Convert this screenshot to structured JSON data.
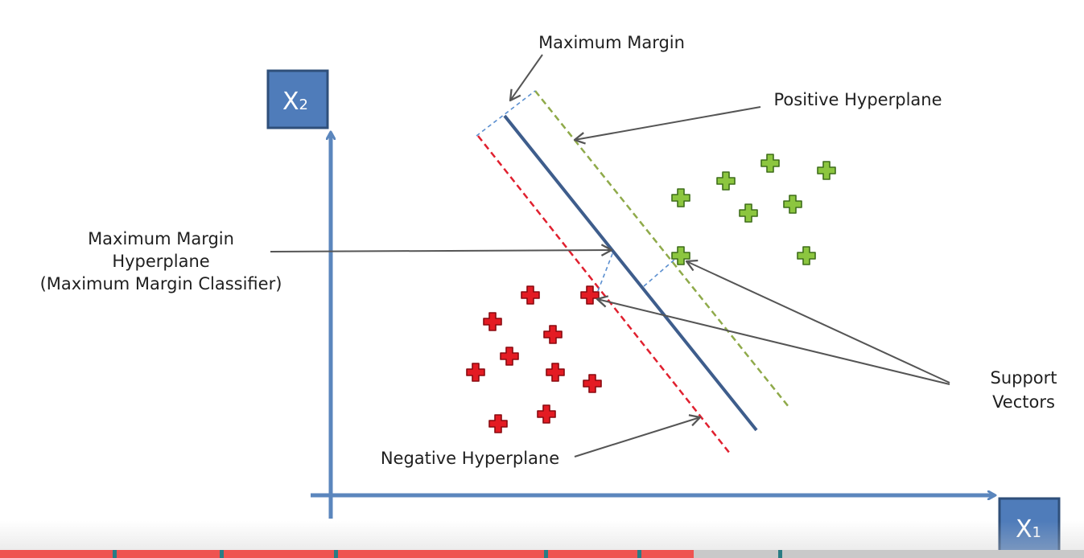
{
  "labels": {
    "maximum_margin": "Maximum Margin",
    "positive_hyperplane": "Positive Hyperplane",
    "mmh_line1": "Maximum Margin",
    "mmh_line2": "Hyperplane",
    "mmh_line3": "(Maximum Margin Classifier)",
    "support_vectors_line1": "Support",
    "support_vectors_line2": "Vectors",
    "negative_hyperplane": "Negative Hyperplane"
  },
  "axes": {
    "y_label": "X",
    "y_sub": "2",
    "x_label": "X",
    "x_sub": "1"
  },
  "colors": {
    "axis": "#5b86bd",
    "axis_box": "#4f7cba",
    "axis_box_border": "#2f4f7a",
    "classifier": "#3e5d8c",
    "positive_line": "#8faa4a",
    "negative_line": "#e0202f",
    "margin_connector": "#5b8fd0",
    "positive_point": "#8cc63f",
    "negative_point": "#e41b23",
    "arrow": "#555555",
    "progress": "#ef5350",
    "chapter_marker": "#2a7c84"
  },
  "video_progress": {
    "played_fraction": 0.64
  }
}
